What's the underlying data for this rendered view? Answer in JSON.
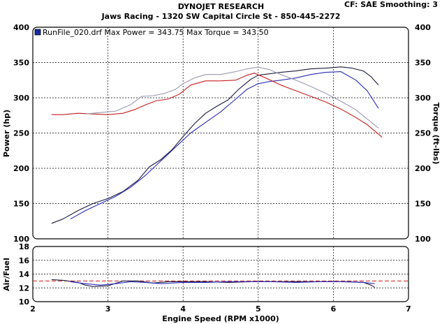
{
  "header": {
    "brand": "DYNOJET RESEARCH",
    "shop": "Jaws Racing - 1320 SW Capital Circle St - 850-445-2272",
    "settings": "CF: SAE  Smoothing: 3"
  },
  "legend": {
    "text": "RunFile_020.drf Max Power = 343.75     Max Torque = 343.50",
    "color": "#1a2aa8"
  },
  "chart_data": [
    {
      "type": "line",
      "panel": "power_torque",
      "xlabel": "Engine Speed (RPM x1000)",
      "ylabel": "Power (hp)",
      "y2label": "Torque (ft-lbs)",
      "xlim": [
        2,
        7
      ],
      "ylim": [
        100,
        400
      ],
      "y2lim": [
        100,
        400
      ],
      "xticks": [
        "2",
        "3",
        "4",
        "5",
        "6",
        "7"
      ],
      "yticks": [
        "100",
        "150",
        "200",
        "250",
        "300",
        "350",
        "400"
      ],
      "y2ticks": [
        "100",
        "150",
        "200",
        "250",
        "300",
        "350",
        "400"
      ],
      "grid": true,
      "series": [
        {
          "role": "power-run-1",
          "color": "#1a1a3a",
          "x": [
            2.25,
            2.4,
            2.6,
            2.8,
            3.0,
            3.2,
            3.4,
            3.55,
            3.7,
            3.85,
            4.0,
            4.15,
            4.3,
            4.45,
            4.6,
            4.75,
            4.9,
            5.0,
            5.15,
            5.3,
            5.5,
            5.7,
            5.9,
            6.1,
            6.25,
            6.4,
            6.5,
            6.6
          ],
          "y": [
            122,
            128,
            140,
            150,
            157,
            167,
            183,
            202,
            212,
            226,
            245,
            263,
            278,
            288,
            297,
            313,
            326,
            332,
            334,
            336,
            338,
            341,
            342,
            343.75,
            342,
            338,
            330,
            318
          ]
        },
        {
          "role": "power-run-2",
          "color": "#2a2ab8",
          "x": [
            2.5,
            2.7,
            2.9,
            3.1,
            3.3,
            3.5,
            3.65,
            3.8,
            3.95,
            4.1,
            4.3,
            4.5,
            4.7,
            4.85,
            5.0,
            5.15,
            5.3,
            5.5,
            5.7,
            5.9,
            6.1,
            6.3,
            6.45,
            6.6
          ],
          "y": [
            128,
            140,
            150,
            160,
            173,
            190,
            205,
            220,
            235,
            250,
            265,
            280,
            298,
            312,
            320,
            323,
            325,
            328,
            333,
            336,
            337,
            325,
            310,
            285
          ]
        },
        {
          "role": "torque-run-1",
          "color": "#c81e1e",
          "x": [
            2.25,
            2.4,
            2.6,
            2.8,
            3.0,
            3.2,
            3.35,
            3.5,
            3.65,
            3.8,
            3.95,
            4.1,
            4.3,
            4.5,
            4.7,
            4.85,
            4.95,
            5.1,
            5.3,
            5.5,
            5.7,
            5.9,
            6.1,
            6.3,
            6.45,
            6.65
          ],
          "y": [
            276,
            276,
            278,
            277,
            276,
            278,
            283,
            290,
            296,
            298,
            305,
            318,
            324,
            324,
            325,
            332,
            335,
            328,
            318,
            310,
            302,
            294,
            284,
            272,
            262,
            244
          ]
        },
        {
          "role": "torque-run-2",
          "color": "#9a9aae",
          "x": [
            2.7,
            2.9,
            3.1,
            3.3,
            3.45,
            3.6,
            3.75,
            3.9,
            4.0,
            4.15,
            4.3,
            4.5,
            4.7,
            4.85,
            5.0,
            5.15,
            5.3,
            5.5,
            5.7,
            5.9,
            6.1,
            6.3,
            6.45,
            6.6
          ],
          "y": [
            277,
            279,
            281,
            290,
            302,
            303,
            306,
            312,
            320,
            328,
            333,
            333,
            337,
            341,
            343.5,
            340,
            333,
            325,
            316,
            306,
            295,
            283,
            270,
            257
          ]
        }
      ]
    },
    {
      "type": "line",
      "panel": "air_fuel",
      "xlabel": "Engine Speed (RPM x1000)",
      "ylabel": "Air/Fuel",
      "xlim": [
        2,
        7
      ],
      "ylim": [
        10,
        18
      ],
      "yticks": [
        "10",
        "12",
        "14",
        "16",
        "18"
      ],
      "reference_line": 13,
      "grid": true,
      "series": [
        {
          "role": "af-run-1",
          "color": "#1a1a3a",
          "x": [
            2.25,
            2.4,
            2.6,
            2.7,
            2.8,
            3.0,
            3.2,
            3.4,
            3.6,
            3.8,
            4.0,
            4.3,
            4.6,
            4.9,
            5.2,
            5.5,
            5.8,
            6.0,
            6.2,
            6.4,
            6.5,
            6.55
          ],
          "y": [
            13.2,
            13.1,
            12.8,
            12.4,
            12.2,
            12.3,
            13.0,
            13.0,
            12.7,
            12.9,
            12.9,
            12.9,
            12.8,
            12.9,
            12.9,
            12.9,
            12.9,
            12.9,
            12.9,
            12.8,
            12.4,
            12.1
          ]
        },
        {
          "role": "af-run-2",
          "color": "#2a2ab8",
          "x": [
            2.5,
            2.7,
            2.9,
            3.1,
            3.3,
            3.5,
            3.7,
            4.0,
            4.3,
            4.6,
            4.9,
            5.2,
            5.5,
            5.8,
            6.1,
            6.4,
            6.55
          ],
          "y": [
            12.9,
            12.6,
            12.4,
            12.6,
            12.9,
            12.8,
            12.6,
            12.8,
            12.8,
            12.9,
            12.9,
            12.9,
            12.8,
            12.9,
            12.9,
            12.8,
            12.6
          ]
        }
      ]
    }
  ]
}
